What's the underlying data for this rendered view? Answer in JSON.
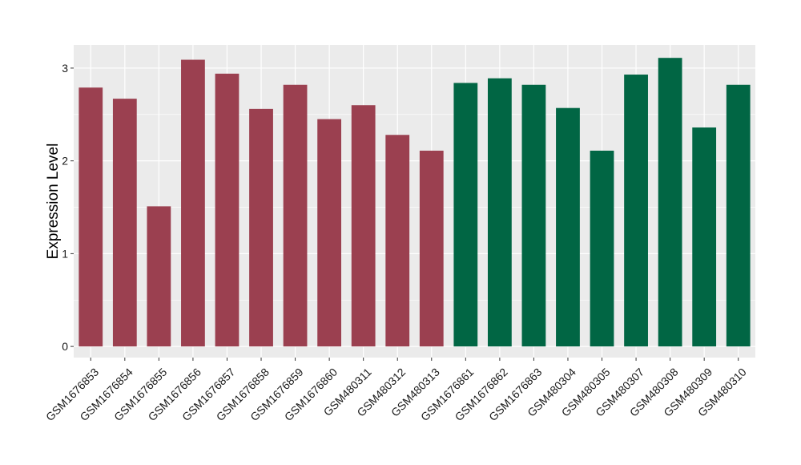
{
  "chart_data": {
    "type": "bar",
    "title": "",
    "xlabel": "",
    "ylabel": "Expression Level",
    "ylim": [
      -0.12,
      3.25
    ],
    "yticks": [
      0,
      1,
      2,
      3
    ],
    "ytick_labels": [
      "0",
      "1",
      "2",
      "3"
    ],
    "grid": true,
    "legend": "none",
    "categories": [
      "GSM1676853",
      "GSM1676854",
      "GSM1676855",
      "GSM1676856",
      "GSM1676857",
      "GSM1676858",
      "GSM1676859",
      "GSM1676860",
      "GSM480311",
      "GSM480312",
      "GSM480313",
      "GSM1676861",
      "GSM1676862",
      "GSM1676863",
      "GSM480304",
      "GSM480305",
      "GSM480307",
      "GSM480308",
      "GSM480309",
      "GSM480310"
    ],
    "values": [
      2.79,
      2.67,
      1.51,
      3.09,
      2.94,
      2.56,
      2.82,
      2.45,
      2.6,
      2.28,
      2.11,
      2.84,
      2.89,
      2.82,
      2.57,
      2.11,
      2.93,
      3.11,
      2.36,
      2.82
    ],
    "bar_groups": [
      0,
      0,
      0,
      0,
      0,
      0,
      0,
      0,
      0,
      0,
      0,
      1,
      1,
      1,
      1,
      1,
      1,
      1,
      1,
      1
    ],
    "group_colors": [
      "#9b4050",
      "#016644"
    ],
    "panel_background": "#ebebeb",
    "grid_color": "#ffffff"
  }
}
